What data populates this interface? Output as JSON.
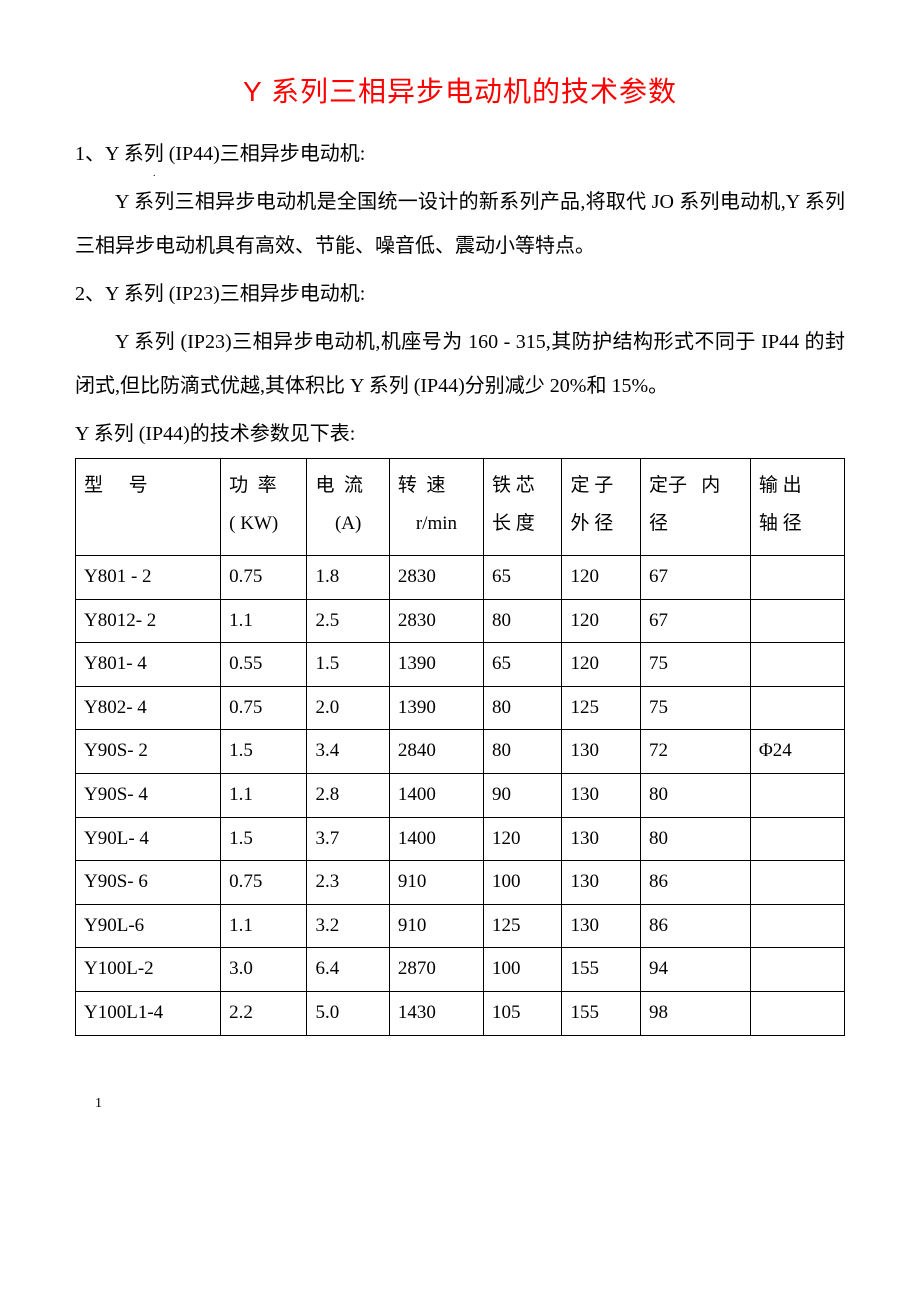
{
  "title": "Y 系列三相异步电动机的技术参数",
  "section1": {
    "heading": "1、Y 系列 (IP44)三相异步电动机:",
    "body": "Y 系列三相异步电动机是全国统一设计的新系列产品,将取代 JO 系列电动机,Y 系列三相异步电动机具有高效、节能、噪音低、震动小等特点。"
  },
  "section2": {
    "heading": "2、Y 系列 (IP23)三相异步电动机:",
    "body": "Y 系列 (IP23)三相异步电动机,机座号为 160 - 315,其防护结构形式不同于 IP44 的封闭式,但比防滴式优越,其体积比 Y 系列 (IP44)分别减少 20%和 15%。"
  },
  "table_caption": "Y 系列 (IP44)的技术参数见下表:",
  "table": {
    "type": "table",
    "border_color": "#000000",
    "background_color": "#ffffff",
    "font_size_pt": 14,
    "columns": [
      {
        "key": "model",
        "label_main": "型",
        "label_sub": "号",
        "unit": "",
        "width_pct": 18.5,
        "align": "left"
      },
      {
        "key": "power",
        "label_main": "功",
        "label_sub": "率",
        "unit": "( KW)",
        "width_pct": 11,
        "align": "left"
      },
      {
        "key": "current",
        "label_main": "电",
        "label_sub": "流",
        "unit": "(A)",
        "width_pct": 10.5,
        "align": "center"
      },
      {
        "key": "speed",
        "label_main": "转",
        "label_sub": "速",
        "unit": "r/min",
        "width_pct": 12,
        "align": "center"
      },
      {
        "key": "iron_len",
        "label_main": "铁",
        "label_sub": "芯",
        "unit": "长 度",
        "width_pct": 10,
        "align": "left"
      },
      {
        "key": "stator_out",
        "label_main": "定",
        "label_sub": "子",
        "unit": "外 径",
        "width_pct": 10,
        "align": "left"
      },
      {
        "key": "stator_in",
        "label_main": "定子",
        "label_sub": "内",
        "unit": "径",
        "width_pct": 14,
        "align": "left"
      },
      {
        "key": "shaft",
        "label_main": "输",
        "label_sub": "出",
        "unit": "轴 径",
        "width_pct": 12,
        "align": "left"
      }
    ],
    "rows": [
      [
        "Y801 - 2",
        "0.75",
        "1.8",
        "2830",
        "65",
        "120",
        "67",
        ""
      ],
      [
        "Y8012- 2",
        "1.1",
        "2.5",
        "2830",
        "80",
        "120",
        "67",
        ""
      ],
      [
        "Y801- 4",
        "0.55",
        "1.5",
        "1390",
        "65",
        "120",
        "75",
        ""
      ],
      [
        "Y802- 4",
        "0.75",
        "2.0",
        "1390",
        "80",
        "125",
        "75",
        ""
      ],
      [
        "Y90S- 2",
        "1.5",
        "3.4",
        "2840",
        "80",
        "130",
        "72",
        "Φ24"
      ],
      [
        "Y90S- 4",
        "1.1",
        "2.8",
        "1400",
        "90",
        "130",
        "80",
        ""
      ],
      [
        "Y90L- 4",
        "1.5",
        "3.7",
        "1400",
        "120",
        "130",
        "80",
        ""
      ],
      [
        "Y90S- 6",
        "0.75",
        "2.3",
        "910",
        "100",
        "130",
        "86",
        ""
      ],
      [
        "Y90L-6",
        "1.1",
        "3.2",
        "910",
        "125",
        "130",
        "86",
        ""
      ],
      [
        "Y100L-2",
        "3.0",
        "6.4",
        "2870",
        "100",
        "155",
        "94",
        ""
      ],
      [
        "Y100L1-4",
        "2.2",
        "5.0",
        "1430",
        "105",
        "155",
        "98",
        ""
      ]
    ]
  },
  "footer": "1",
  "dot": "."
}
